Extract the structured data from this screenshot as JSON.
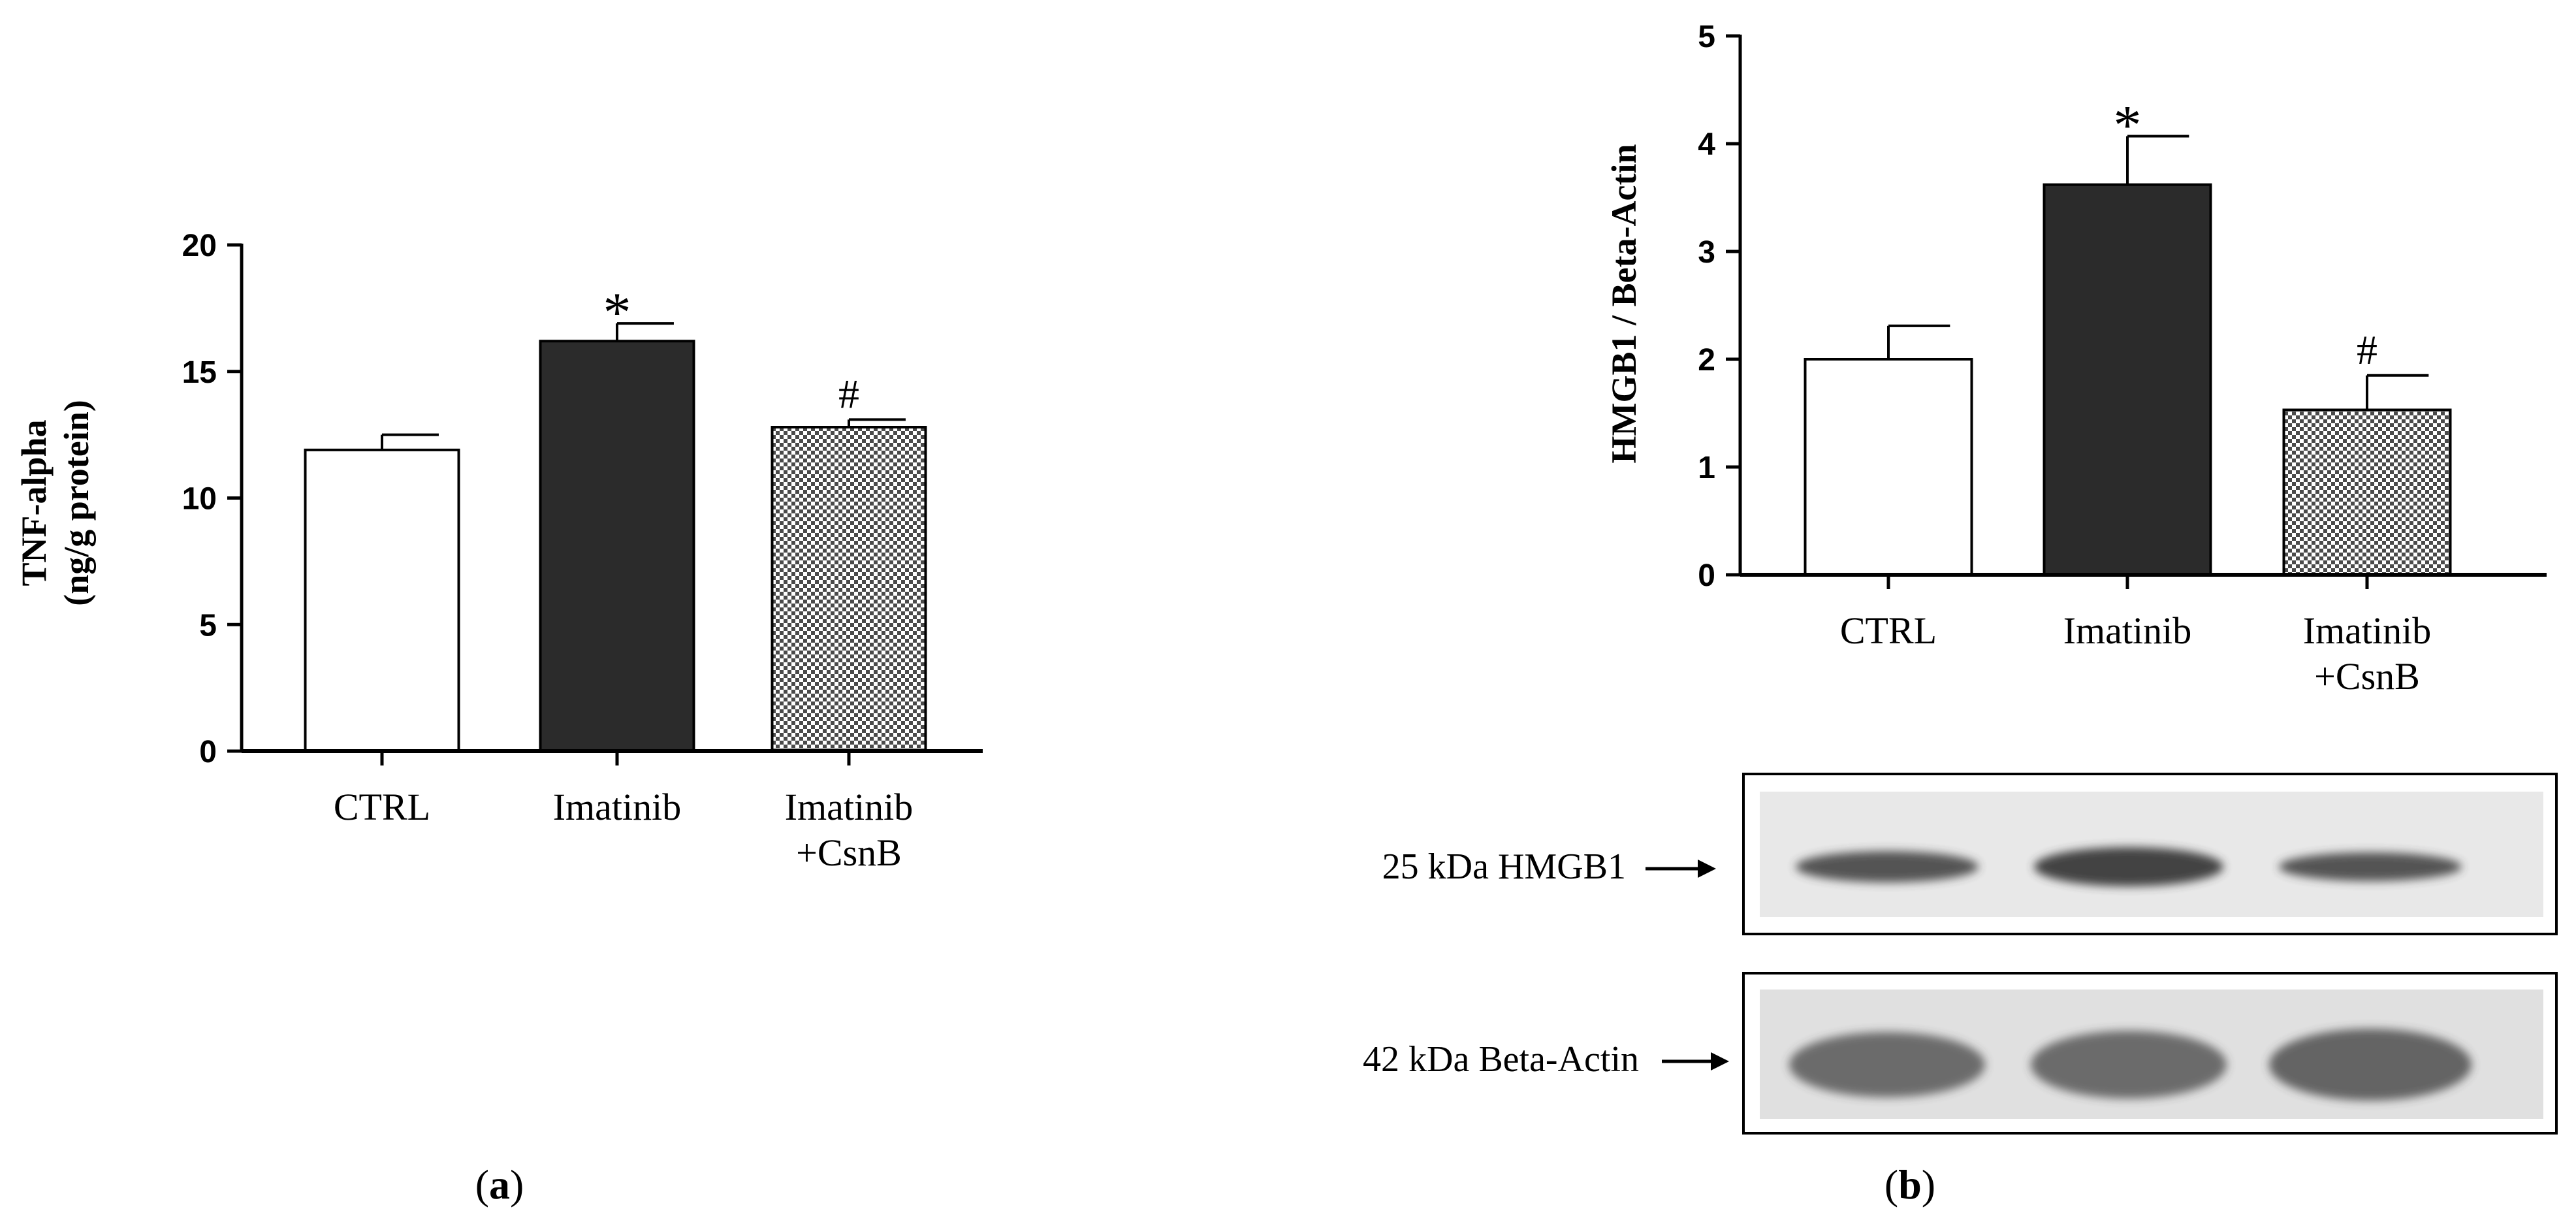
{
  "chart_data": [
    {
      "type": "bar",
      "panel_label": "a",
      "ylabel_line1": "TNF-alpha",
      "ylabel_line2": "(ng/g protein)",
      "ylim": [
        0,
        20
      ],
      "yticks": [
        "0",
        "5",
        "10",
        "15",
        "20"
      ],
      "categories": [
        {
          "line1": "CTRL",
          "line2": ""
        },
        {
          "line1": "Imatinib",
          "line2": ""
        },
        {
          "line1": "Imatinib",
          "line2": "+CsnB"
        }
      ],
      "values": [
        11.9,
        16.2,
        12.8
      ],
      "errors": [
        0.6,
        0.7,
        0.3
      ],
      "significance": [
        "",
        "*",
        "#"
      ],
      "fills": [
        "white",
        "black",
        "checker"
      ]
    },
    {
      "type": "bar",
      "panel_label": "b",
      "ylabel": "HMGB1 / Beta-Actin",
      "ylim": [
        0,
        5
      ],
      "yticks": [
        "0",
        "1",
        "2",
        "3",
        "4",
        "5"
      ],
      "categories": [
        {
          "line1": "CTRL",
          "line2": ""
        },
        {
          "line1": "Imatinib",
          "line2": ""
        },
        {
          "line1": "Imatinib",
          "line2": "+CsnB"
        }
      ],
      "values": [
        2.0,
        3.62,
        1.53
      ],
      "errors": [
        0.31,
        0.45,
        0.32
      ],
      "significance": [
        "",
        "*",
        "#"
      ],
      "fills": [
        "white",
        "black",
        "checker"
      ]
    }
  ],
  "blot": {
    "rows": [
      {
        "label": "25 kDa HMGB1",
        "lanes": 3
      },
      {
        "label": "42 kDa Beta-Actin",
        "lanes": 3
      }
    ]
  },
  "panel_labels": [
    "(a)",
    "(b)"
  ],
  "colors": {
    "dark_bar": "#2b2b2b",
    "axis": "#000000",
    "blot_bg": "#e8e8e8",
    "band": "#3a3a3a"
  }
}
